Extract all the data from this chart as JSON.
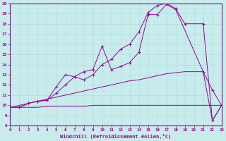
{
  "xlabel": "Windchill (Refroidissement éolien,°C)",
  "background_color": "#c8ecec",
  "grid_color": "#b0dede",
  "line_color": "#990099",
  "xmin": 0,
  "xmax": 23,
  "ymin": 8,
  "ymax": 20,
  "xtick_labels": [
    "0",
    "1",
    "2",
    "3",
    "4",
    "5",
    "6",
    "7",
    "8",
    "9",
    "10",
    "11",
    "12",
    "13",
    "14",
    "15",
    "16",
    "17",
    "18",
    "19",
    "20",
    "21",
    "22",
    "23"
  ],
  "ytick_labels": [
    "8",
    "9",
    "10",
    "11",
    "12",
    "13",
    "14",
    "15",
    "16",
    "17",
    "18",
    "19",
    "20"
  ],
  "series": [
    {
      "x": [
        0,
        1,
        2,
        3,
        4,
        5,
        6,
        7,
        8,
        9,
        10,
        11,
        12,
        13,
        14,
        15,
        16,
        17,
        18,
        21,
        22,
        23
      ],
      "y": [
        9.8,
        9.8,
        10.2,
        10.4,
        10.5,
        11.8,
        13.0,
        12.8,
        13.3,
        13.5,
        15.8,
        13.5,
        13.8,
        14.2,
        15.2,
        18.9,
        18.9,
        19.9,
        19.4,
        13.3,
        11.5,
        10.0
      ],
      "marker": true
    },
    {
      "x": [
        0,
        1,
        2,
        3,
        4,
        5,
        6,
        7,
        8,
        9,
        10,
        11,
        12,
        13,
        14,
        15,
        16,
        17,
        18,
        19,
        21,
        22,
        23
      ],
      "y": [
        9.8,
        9.8,
        10.2,
        10.4,
        10.5,
        11.2,
        12.0,
        12.8,
        12.5,
        13.0,
        14.0,
        14.5,
        15.5,
        16.0,
        17.2,
        19.1,
        19.8,
        20.0,
        19.5,
        18.0,
        18.0,
        8.5,
        10.0
      ],
      "marker": true
    },
    {
      "x": [
        0,
        1,
        2,
        3,
        4,
        5,
        6,
        7,
        8,
        9,
        10,
        11,
        12,
        13,
        14,
        15,
        16,
        17,
        18,
        19,
        20,
        21,
        22,
        23
      ],
      "y": [
        9.8,
        10.0,
        10.2,
        10.4,
        10.6,
        10.8,
        11.0,
        11.2,
        11.4,
        11.6,
        11.8,
        12.0,
        12.2,
        12.4,
        12.5,
        12.7,
        12.9,
        13.1,
        13.2,
        13.3,
        13.3,
        13.3,
        8.5,
        10.0
      ],
      "marker": false
    },
    {
      "x": [
        0,
        1,
        2,
        3,
        4,
        5,
        6,
        7,
        8,
        9,
        10,
        11,
        12,
        13,
        14,
        15,
        16,
        17,
        18,
        19,
        20,
        21,
        22,
        23
      ],
      "y": [
        9.8,
        9.8,
        9.8,
        9.8,
        9.9,
        9.9,
        9.9,
        9.9,
        9.9,
        10.0,
        10.0,
        10.0,
        10.0,
        10.0,
        10.0,
        10.0,
        10.0,
        10.0,
        10.0,
        10.0,
        10.0,
        10.0,
        10.0,
        10.0
      ],
      "marker": false
    }
  ]
}
